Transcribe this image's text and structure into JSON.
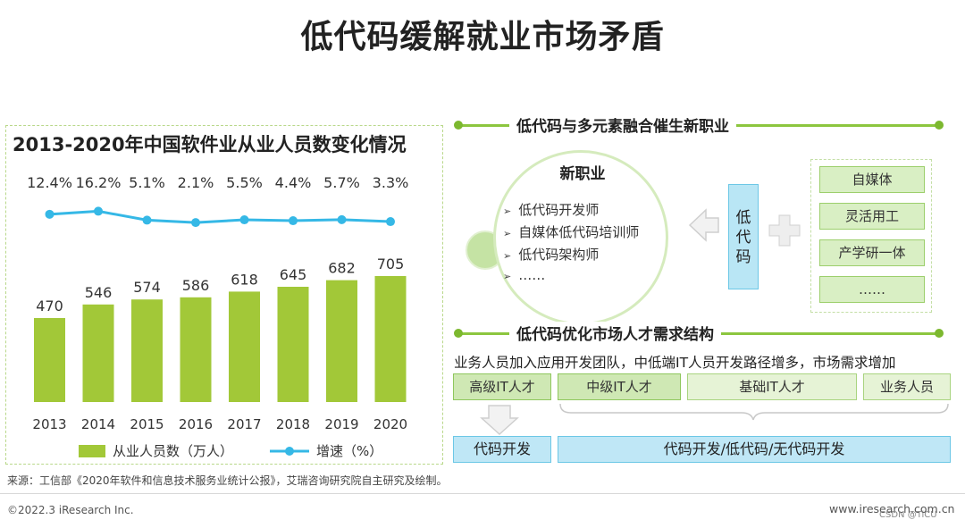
{
  "page_title": "低代码缓解就业市场矛盾",
  "chart_data": {
    "type": "bar",
    "title": "2013-2020年中国软件业从业人员数变化情况",
    "categories": [
      "2013",
      "2014",
      "2015",
      "2016",
      "2017",
      "2018",
      "2019",
      "2020"
    ],
    "series": [
      {
        "name": "从业人员数（万人）",
        "type": "bar",
        "values": [
          470,
          546,
          574,
          586,
          618,
          645,
          682,
          705
        ],
        "color": "#a2c838"
      },
      {
        "name": "增速（%）",
        "type": "line",
        "values": [
          12.4,
          16.2,
          5.1,
          2.1,
          5.5,
          4.4,
          5.7,
          3.3
        ],
        "labels": [
          "12.4%",
          "16.2%",
          "5.1%",
          "2.1%",
          "5.5%",
          "4.4%",
          "5.7%",
          "3.3%"
        ],
        "color": "#35b8e6"
      }
    ],
    "legend_position": "bottom",
    "grid": false
  },
  "section1": {
    "title": "低代码与多元素融合催生新职业"
  },
  "jobs": {
    "title": "新职业",
    "marker": "➢",
    "items": [
      "低代码开发师",
      "自媒体低代码培训师",
      "低代码架构师",
      "……"
    ]
  },
  "lowcode_box": {
    "chars": [
      "低",
      "代",
      "码"
    ]
  },
  "tags": [
    "自媒体",
    "灵活用工",
    "产学研一体",
    "……"
  ],
  "section2": {
    "title": "低代码优化市场人才需求结构",
    "description": "业务人员加入应用开发团队，中低端IT人员开发路径增多，市场需求增加",
    "levels": [
      "高级IT人才",
      "中级IT人才",
      "基础IT人才",
      "业务人员"
    ],
    "dev_traditional": "代码开发",
    "dev_modern": "代码开发/低代码/无代码开发"
  },
  "footer": {
    "source": "来源：工信部《2020年软件和信息技术服务业统计公报》，艾瑞咨询研究院自主研究及绘制。",
    "copyright": "©2022.3 iResearch Inc.",
    "url": "www.iresearch.com.cn",
    "watermark": "CSDN @TiCU"
  },
  "colors": {
    "accent_green": "#8cc63f",
    "bar_green": "#a2c838",
    "line_blue": "#35b8e6",
    "box_blue": "#bfe7f6"
  }
}
